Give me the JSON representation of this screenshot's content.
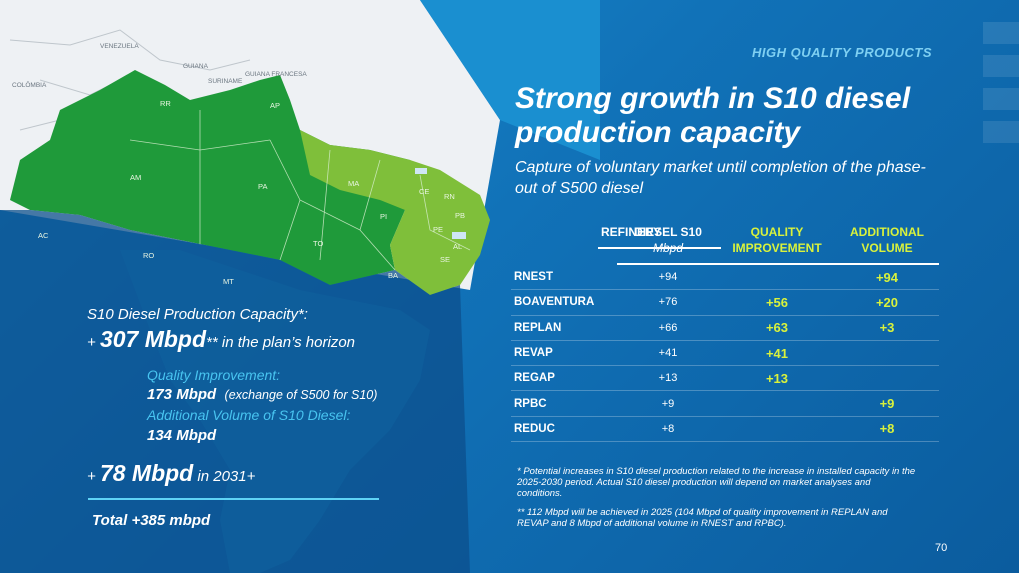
{
  "kicker": "HIGH QUALITY PRODUCTS",
  "title": "Strong growth in S10 diesel production capacity",
  "subtitle": "Capture of voluntary market until completion of the phase-out of S500 diesel",
  "table": {
    "headers": {
      "refinery": "REFINERY",
      "diesel": "DIESEL S10",
      "diesel_unit": "Mbpd",
      "quality": "QUALITY IMPROVEMENT",
      "additional": "ADDITIONAL VOLUME"
    },
    "rows": [
      {
        "name": "RNEST",
        "diesel": "+94",
        "quality": "",
        "additional": "+94"
      },
      {
        "name": "BOAVENTURA",
        "diesel": "+76",
        "quality": "+56",
        "additional": "+20"
      },
      {
        "name": "REPLAN",
        "diesel": "+66",
        "quality": "+63",
        "additional": "+3"
      },
      {
        "name": "REVAP",
        "diesel": "+41",
        "quality": "+41",
        "additional": ""
      },
      {
        "name": "REGAP",
        "diesel": "+13",
        "quality": "+13",
        "additional": ""
      },
      {
        "name": "RPBC",
        "diesel": "+9",
        "quality": "",
        "additional": "+9"
      },
      {
        "name": "REDUC",
        "diesel": "+8",
        "quality": "",
        "additional": "+8"
      }
    ]
  },
  "footnotes": {
    "note1": "* Potential increases in S10 diesel production related to the increase in installed capacity in the 2025-2030 period. Actual S10 diesel production will depend on market analyses and conditions.",
    "note2": "** 112 Mbpd will be achieved in 2025 (104 Mbpd of quality improvement in REPLAN and REVAP and 8 Mbpd of additional volume in RNEST and RPBC)."
  },
  "page_number": "70",
  "capacity": {
    "label": "S10 Diesel Production Capacity*:",
    "plus": "+ ",
    "value": "307 Mbpd",
    "suffix": "** in the plan’s horizon",
    "quality_label": "Quality Improvement:",
    "quality_value": "173 Mbpd",
    "quality_note": "(exchange of S500 for S10)",
    "additional_label": "Additional Volume of S10 Diesel:",
    "additional_value": "134 Mbpd",
    "plus2031": "+ ",
    "value2031": "78 Mbpd",
    "suffix2031": " in 2031+",
    "total": "Total +385 mbpd"
  },
  "map": {
    "countries": [
      "VENEZUELA",
      "GUIANA",
      "SURINAME",
      "GUIANA FRANCESA",
      "COLÔMBIA"
    ],
    "states": [
      "RR",
      "AP",
      "AM",
      "PA",
      "MA",
      "CE",
      "RN",
      "PB",
      "PI",
      "PE",
      "AL",
      "SE",
      "TO",
      "BA",
      "AC",
      "RO",
      "MT"
    ]
  },
  "colors": {
    "background": "#1172b8",
    "accent_yellow": "#d9f23c",
    "accent_cyan": "#48c4f0",
    "map_green_dark": "#1f9a3a",
    "map_green_light": "#7fbf3a"
  }
}
